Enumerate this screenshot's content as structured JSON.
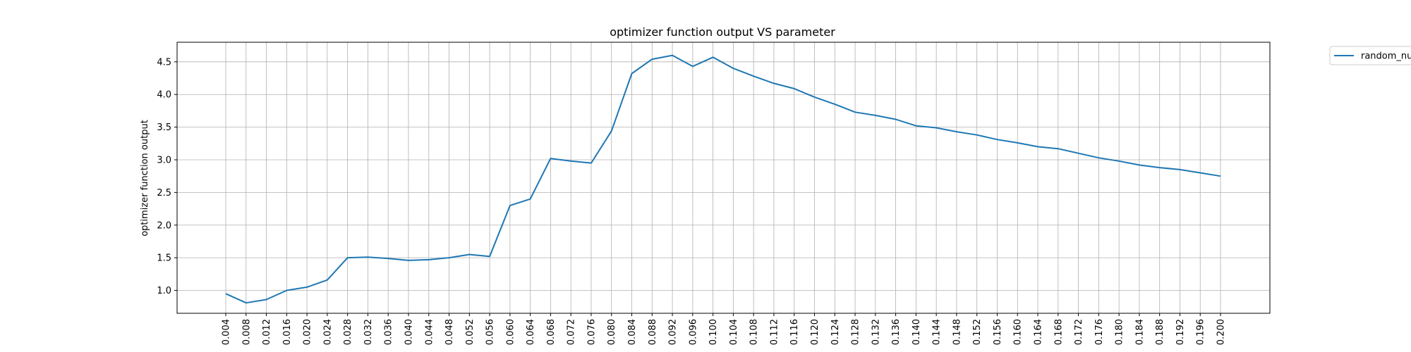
{
  "chart_data": {
    "type": "line",
    "title": "optimizer function output VS parameter",
    "xlabel": "",
    "ylabel": "optimizer function output",
    "x": [
      "0.004",
      "0.008",
      "0.012",
      "0.016",
      "0.020",
      "0.024",
      "0.028",
      "0.032",
      "0.036",
      "0.040",
      "0.044",
      "0.048",
      "0.052",
      "0.056",
      "0.060",
      "0.064",
      "0.068",
      "0.072",
      "0.076",
      "0.080",
      "0.084",
      "0.088",
      "0.092",
      "0.096",
      "0.100",
      "0.104",
      "0.108",
      "0.112",
      "0.116",
      "0.120",
      "0.124",
      "0.128",
      "0.132",
      "0.136",
      "0.140",
      "0.144",
      "0.148",
      "0.152",
      "0.156",
      "0.160",
      "0.164",
      "0.168",
      "0.172",
      "0.176",
      "0.180",
      "0.184",
      "0.188",
      "0.192",
      "0.196",
      "0.200"
    ],
    "series": [
      {
        "name": "random_nu",
        "color": "#1f77b4",
        "values": [
          0.95,
          0.81,
          0.86,
          1.0,
          1.05,
          1.16,
          1.5,
          1.51,
          1.49,
          1.46,
          1.47,
          1.5,
          1.55,
          1.52,
          2.3,
          2.4,
          3.02,
          2.98,
          2.95,
          3.44,
          4.32,
          4.54,
          4.6,
          4.43,
          4.57,
          4.4,
          4.28,
          4.17,
          4.09,
          3.96,
          3.85,
          3.73,
          3.68,
          3.62,
          3.52,
          3.49,
          3.43,
          3.38,
          3.31,
          3.26,
          3.2,
          3.17,
          3.1,
          3.03,
          2.98,
          2.92,
          2.88,
          2.85,
          2.8,
          2.75
        ]
      }
    ],
    "yticks": [
      "1.0",
      "1.5",
      "2.0",
      "2.5",
      "3.0",
      "3.5",
      "4.0",
      "4.5"
    ],
    "ylim": [
      0.65,
      4.8
    ],
    "grid": true,
    "legend_position": "outside-top-right"
  }
}
